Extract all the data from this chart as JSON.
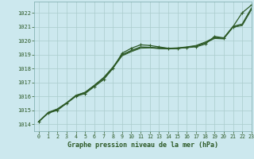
{
  "title": "Graphe pression niveau de la mer (hPa)",
  "background_color": "#cce8ee",
  "grid_color": "#aacccc",
  "line_color": "#2d5a27",
  "xlim": [
    -0.5,
    23
  ],
  "ylim": [
    1013.5,
    1022.8
  ],
  "xticks": [
    0,
    1,
    2,
    3,
    4,
    5,
    6,
    7,
    8,
    9,
    10,
    11,
    12,
    13,
    14,
    15,
    16,
    17,
    18,
    19,
    20,
    21,
    22,
    23
  ],
  "yticks": [
    1014,
    1015,
    1016,
    1017,
    1018,
    1019,
    1020,
    1021,
    1022
  ],
  "series": [
    {
      "x": [
        0,
        1,
        2,
        3,
        4,
        5,
        6,
        7,
        8,
        9,
        10,
        11,
        12,
        13,
        14,
        15,
        16,
        17,
        18,
        19,
        20,
        21,
        22,
        23
      ],
      "y": [
        1014.2,
        1014.8,
        1015.0,
        1015.5,
        1016.0,
        1016.2,
        1016.7,
        1017.2,
        1018.0,
        1019.1,
        1019.45,
        1019.7,
        1019.65,
        1019.55,
        1019.45,
        1019.45,
        1019.5,
        1019.55,
        1019.75,
        1020.3,
        1020.2,
        1021.0,
        1022.0,
        1022.55
      ],
      "marker": true,
      "lw": 0.9
    },
    {
      "x": [
        0,
        1,
        2,
        3,
        4,
        5,
        6,
        7,
        8,
        9,
        10,
        11,
        12,
        13,
        14,
        15,
        16,
        17,
        18,
        19,
        20,
        21,
        22,
        23
      ],
      "y": [
        1014.2,
        1014.85,
        1015.1,
        1015.55,
        1016.05,
        1016.3,
        1016.8,
        1017.35,
        1018.1,
        1019.0,
        1019.3,
        1019.55,
        1019.52,
        1019.48,
        1019.45,
        1019.48,
        1019.55,
        1019.65,
        1019.9,
        1020.22,
        1020.18,
        1021.02,
        1021.2,
        1022.35
      ],
      "marker": false,
      "lw": 0.8
    },
    {
      "x": [
        0,
        1,
        2,
        3,
        4,
        5,
        6,
        7,
        8,
        9,
        10,
        11,
        12,
        13,
        14,
        15,
        16,
        17,
        18,
        19,
        20,
        21,
        22,
        23
      ],
      "y": [
        1014.2,
        1014.82,
        1015.08,
        1015.52,
        1016.08,
        1016.28,
        1016.78,
        1017.32,
        1018.05,
        1018.95,
        1019.25,
        1019.5,
        1019.5,
        1019.45,
        1019.42,
        1019.45,
        1019.52,
        1019.62,
        1019.85,
        1020.18,
        1020.15,
        1020.98,
        1021.12,
        1022.28
      ],
      "marker": false,
      "lw": 0.8
    },
    {
      "x": [
        0,
        1,
        2,
        3,
        4,
        5,
        6,
        7,
        8,
        9,
        10,
        11,
        12,
        13,
        14,
        15,
        16,
        17,
        18,
        19,
        20,
        21,
        22,
        23
      ],
      "y": [
        1014.2,
        1014.78,
        1015.05,
        1015.5,
        1016.02,
        1016.25,
        1016.75,
        1017.28,
        1018.0,
        1018.9,
        1019.2,
        1019.45,
        1019.48,
        1019.42,
        1019.4,
        1019.42,
        1019.5,
        1019.6,
        1019.82,
        1020.15,
        1020.12,
        1020.95,
        1021.08,
        1022.22
      ],
      "marker": false,
      "lw": 0.7
    }
  ]
}
